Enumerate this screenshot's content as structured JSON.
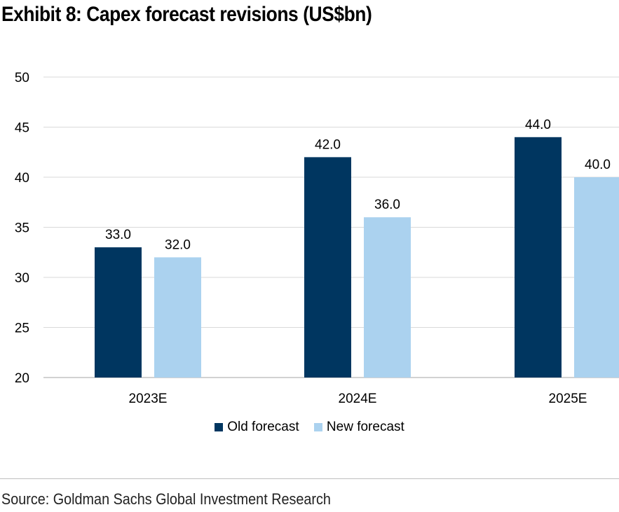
{
  "title": "Exhibit 8: Capex forecast revisions (US$bn)",
  "source": "Source: Goldman Sachs Global Investment Research",
  "chart_data": {
    "type": "bar",
    "categories": [
      "2023E",
      "2024E",
      "2025E"
    ],
    "series": [
      {
        "name": "Old forecast",
        "color": "#003660",
        "values": [
          33.0,
          42.0,
          44.0
        ],
        "labels": [
          "33.0",
          "42.0",
          "44.0"
        ]
      },
      {
        "name": "New forecast",
        "color": "#abd2ef",
        "values": [
          32.0,
          36.0,
          40.0
        ],
        "labels": [
          "32.0",
          "36.0",
          "40.0"
        ]
      }
    ],
    "ylim": [
      20,
      50
    ],
    "yticks": [
      "20",
      "25",
      "30",
      "35",
      "40",
      "45",
      "50"
    ],
    "grid": true,
    "legend": "bottom"
  }
}
